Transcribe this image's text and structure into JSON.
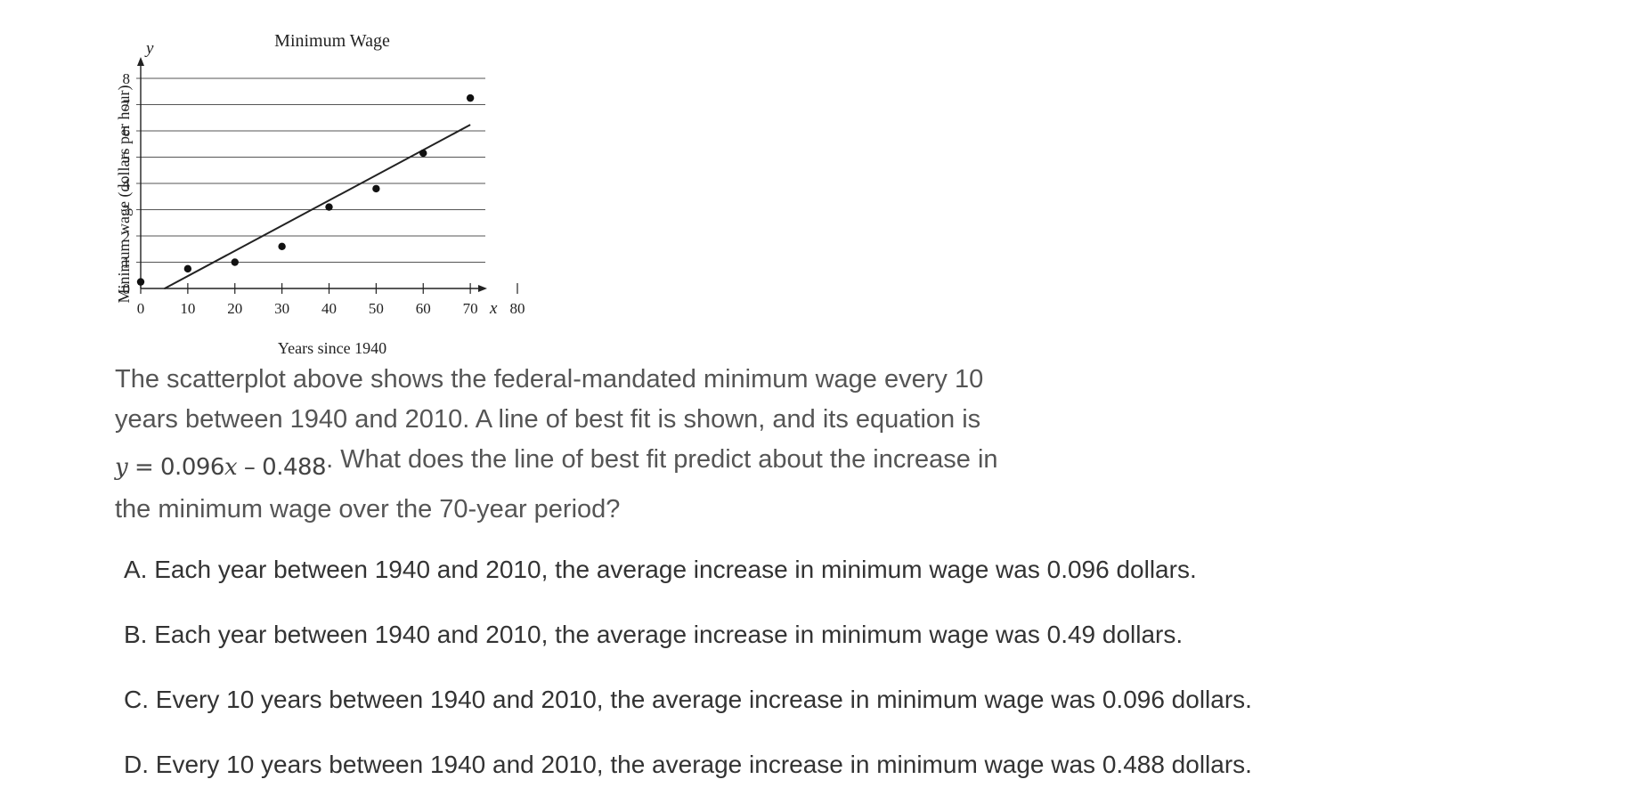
{
  "chart_data": {
    "type": "scatter",
    "title": "Minimum Wage",
    "xlabel": "Years since 1940",
    "ylabel": "Minimum wage (dollars per hour)",
    "x_axis_symbol": "x",
    "y_axis_symbol": "y",
    "xlim": [
      0,
      80
    ],
    "ylim": [
      0,
      8
    ],
    "x_ticks": [
      0,
      10,
      20,
      30,
      40,
      50,
      60,
      70,
      80
    ],
    "y_ticks": [
      0,
      1,
      2,
      3,
      4,
      5,
      6,
      7,
      8
    ],
    "grid": "horizontal",
    "points": [
      {
        "x": 0,
        "y": 0.25
      },
      {
        "x": 10,
        "y": 0.75
      },
      {
        "x": 20,
        "y": 1.0
      },
      {
        "x": 30,
        "y": 1.6
      },
      {
        "x": 40,
        "y": 3.1
      },
      {
        "x": 50,
        "y": 3.8
      },
      {
        "x": 60,
        "y": 5.15
      },
      {
        "x": 70,
        "y": 7.25
      }
    ],
    "fit_line": {
      "slope": 0.096,
      "intercept": -0.488,
      "x_range": [
        5,
        70
      ]
    }
  },
  "question": {
    "line1": "The scatterplot above shows the federal-mandated minimum wage every 10",
    "line2": "years between 1940 and 2010. A line of best fit is shown, and its equation is",
    "equation": {
      "lhs": "y",
      "eq": " = 0.096",
      "var": "x",
      "rest": " – 0.488"
    },
    "after_equation": ". What does the line of best fit predict about the increase in",
    "line4": "the minimum wage over the 70-year period?"
  },
  "choices": [
    {
      "letter": "A",
      "text": "A. Each year between 1940 and 2010, the average increase in minimum wage was 0.096 dollars."
    },
    {
      "letter": "B",
      "text": "B. Each year between 1940 and 2010, the average increase in minimum wage was 0.49 dollars."
    },
    {
      "letter": "C",
      "text": "C. Every 10 years between 1940 and 2010, the average increase in minimum wage was 0.096 dollars."
    },
    {
      "letter": "D",
      "text": "D. Every 10 years between 1940 and 2010, the average increase in minimum wage was 0.488 dollars."
    }
  ]
}
